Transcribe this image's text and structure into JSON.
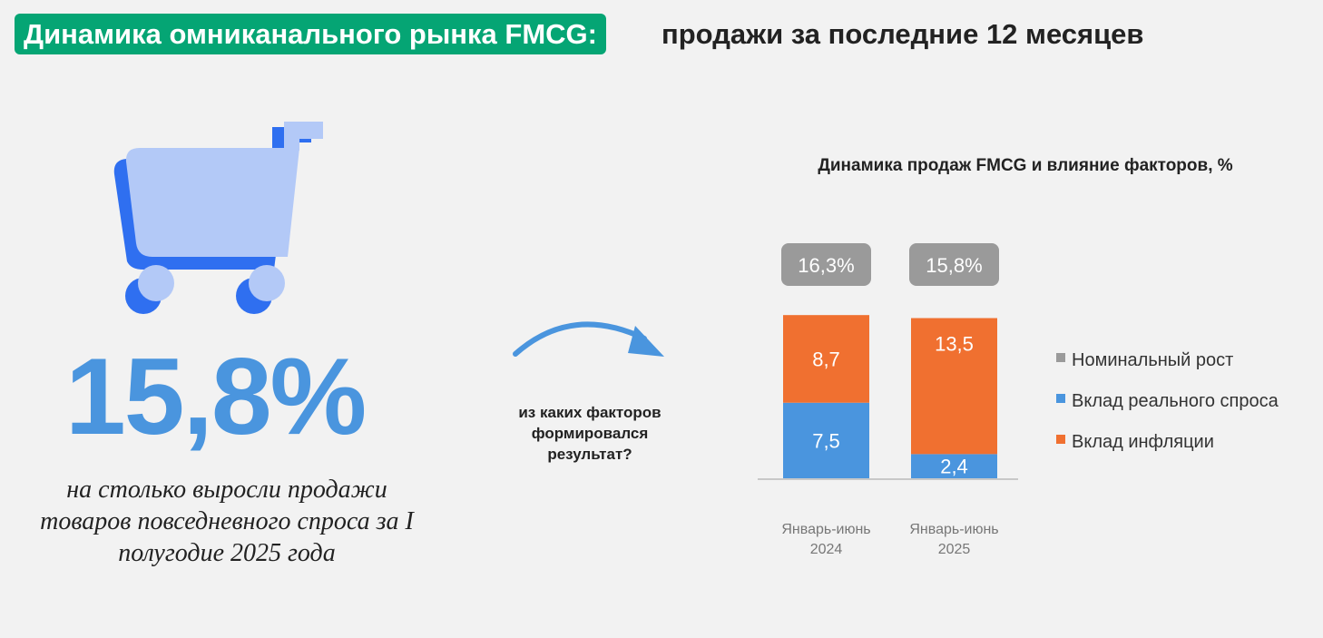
{
  "header": {
    "title_highlight": "Динамика омниканального рынка FMCG:",
    "title_rest": "продажи за последние 12 месяцев"
  },
  "hero": {
    "icon": "shopping-cart-icon",
    "value": "15,8%",
    "caption": "на столько выросли продажи товаров повседневного спроса за I полугодие 2025 года"
  },
  "transition": {
    "icon": "curved-arrow-icon",
    "question": "из каких факторов формировался результат?"
  },
  "colors": {
    "accent": "#05a574",
    "real_demand": "#4a95de",
    "inflation": "#f07030",
    "nominal": "#9a9a9a"
  },
  "chart_data": {
    "type": "bar",
    "stacked": true,
    "title": "Динамика продаж FMCG и влияние факторов, %",
    "categories": [
      "Январь-июнь 2024",
      "Январь-июнь 2025"
    ],
    "category_lines": [
      [
        "Январь-июнь",
        "2024"
      ],
      [
        "Январь-июнь",
        "2025"
      ]
    ],
    "series": [
      {
        "name": "Вклад реального спроса",
        "values": [
          7.5,
          2.4
        ],
        "labels": [
          "7,5",
          "2,4"
        ],
        "color": "#4a95de"
      },
      {
        "name": "Вклад инфляции",
        "values": [
          8.7,
          13.5
        ],
        "labels": [
          "8,7",
          "13,5"
        ],
        "color": "#f07030"
      }
    ],
    "totals": {
      "name": "Номинальный рост",
      "values": [
        16.3,
        15.8
      ],
      "labels": [
        "16,3%",
        "15,8%"
      ],
      "color": "#9a9a9a"
    },
    "legend": [
      "Номинальный рост",
      "Вклад реального спроса",
      "Вклад инфляции"
    ],
    "legend_position": "right",
    "grid": false,
    "ylim": [
      0,
      16.5
    ]
  }
}
